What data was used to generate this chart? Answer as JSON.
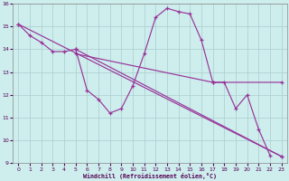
{
  "xlabel": "Windchill (Refroidissement éolien,°C)",
  "background_color": "#cdeeed",
  "line_color": "#993399",
  "grid_color": "#aacccc",
  "xlim": [
    0,
    23
  ],
  "ylim": [
    9,
    16
  ],
  "yticks": [
    9,
    10,
    11,
    12,
    13,
    14,
    15,
    16
  ],
  "xticks": [
    0,
    1,
    2,
    3,
    4,
    5,
    6,
    7,
    8,
    9,
    10,
    11,
    12,
    13,
    14,
    15,
    16,
    17,
    18,
    19,
    20,
    21,
    22,
    23
  ],
  "lines": [
    {
      "x": [
        0,
        1,
        2,
        3,
        4,
        5,
        6,
        7,
        8,
        9,
        10,
        11,
        12,
        13,
        14,
        15,
        16,
        17,
        18,
        19,
        20,
        21,
        22,
        23
      ],
      "y": [
        15.1,
        14.6,
        14.3,
        13.9,
        13.9,
        14.0,
        12.2,
        11.8,
        11.2,
        11.4,
        12.4,
        13.8,
        15.4,
        15.8,
        15.65,
        15.55,
        14.4,
        12.55,
        12.55,
        11.4,
        12.0,
        10.5,
        9.35,
        null
      ]
    },
    {
      "x": [
        0,
        23
      ],
      "y": [
        15.1,
        9.3
      ]
    },
    {
      "x": [
        5,
        17,
        23
      ],
      "y": [
        13.8,
        12.55,
        12.55
      ]
    },
    {
      "comment": "From (5, 14.0) to (23, 9.3)",
      "x": [
        5,
        23
      ],
      "y": [
        14.0,
        9.3
      ]
    }
  ]
}
